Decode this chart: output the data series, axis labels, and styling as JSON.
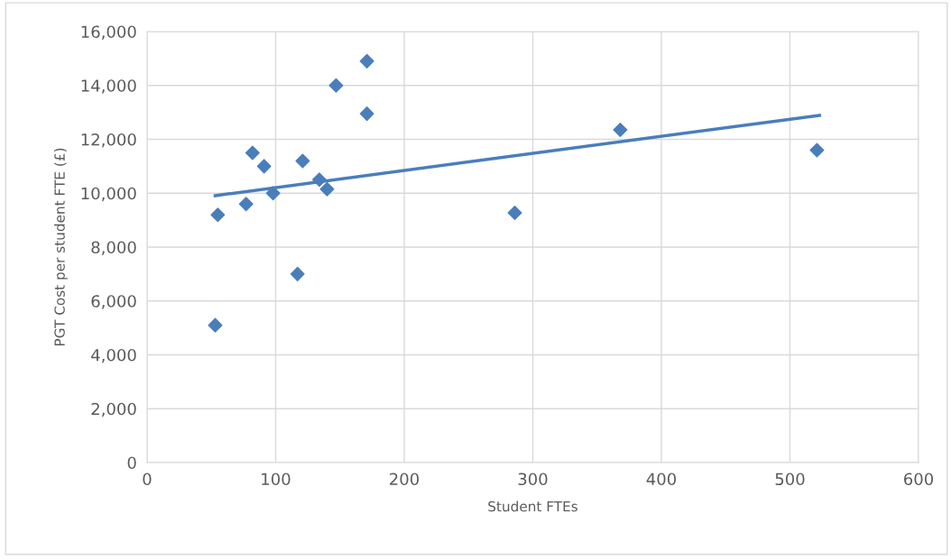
{
  "chart_data": {
    "type": "scatter",
    "xlabel": "Student FTEs",
    "ylabel": "PGT Cost per student FTE (£)",
    "xlim": [
      0,
      600
    ],
    "xticks": [
      0,
      100,
      200,
      300,
      400,
      500,
      600
    ],
    "ylim": [
      0,
      16000
    ],
    "yticks": [
      {
        "value": 0,
        "label": "0"
      },
      {
        "value": 2000,
        "label": "2,000"
      },
      {
        "value": 4000,
        "label": "4,000"
      },
      {
        "value": 6000,
        "label": "6,000"
      },
      {
        "value": 8000,
        "label": "8,000"
      },
      {
        "value": 10000,
        "label": "10,000"
      },
      {
        "value": 12000,
        "label": "12,000"
      },
      {
        "value": 14000,
        "label": "14,000"
      },
      {
        "value": 16000,
        "label": "16,000"
      }
    ],
    "grid": true,
    "series": [
      {
        "marker": "diamond",
        "color": "#4a7ebb",
        "x": [
          53,
          55,
          77,
          82,
          91,
          98,
          117,
          121,
          134,
          140,
          147,
          171,
          171,
          286,
          368,
          521
        ],
        "values": [
          5100,
          9200,
          9600,
          11500,
          11000,
          10000,
          7000,
          11200,
          10500,
          10150,
          14000,
          14900,
          12950,
          9270,
          12350,
          11600
        ]
      },
      {
        "type": "line",
        "color": "#4a7ebb",
        "x": [
          53,
          523
        ],
        "values": [
          9910,
          12890
        ]
      }
    ]
  }
}
